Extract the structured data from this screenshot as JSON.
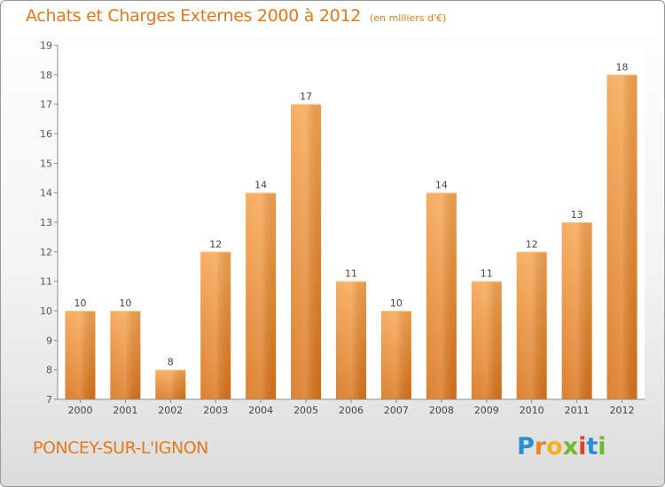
{
  "title": "Achats et Charges Externes 2000 à 2012",
  "subtitle": "(en milliers d'€)",
  "town": "PONCEY-SUR-L'IGNON",
  "logo": {
    "letters": [
      "P",
      "r",
      "o",
      "x",
      "i",
      "t",
      "i"
    ],
    "colors": [
      "#2a8fd6",
      "#e8862a",
      "#f2b21d",
      "#6fba2c",
      "#e0432c",
      "#2a8fd6",
      "#6fba2c"
    ]
  },
  "colors": {
    "accent": "#e07a1f",
    "bar_top": "#f6a550",
    "bar_bottom": "#d9731a"
  },
  "chart_data": {
    "type": "bar",
    "categories": [
      "2000",
      "2001",
      "2002",
      "2003",
      "2004",
      "2005",
      "2006",
      "2007",
      "2008",
      "2009",
      "2010",
      "2011",
      "2012"
    ],
    "values": [
      10,
      10,
      8,
      12,
      14,
      17,
      11,
      10,
      14,
      11,
      12,
      13,
      18
    ],
    "data_labels": [
      "10",
      "10",
      "8",
      "12",
      "14",
      "17",
      "11",
      "10",
      "14",
      "11",
      "12",
      "13",
      "18"
    ],
    "title": "Achats et Charges Externes 2000 à 2012",
    "xlabel": "",
    "ylabel": "",
    "ylim": [
      7,
      19
    ],
    "yticks": [
      "7",
      "8",
      "9",
      "10",
      "11",
      "12",
      "13",
      "14",
      "15",
      "16",
      "17",
      "18",
      "19"
    ],
    "grid": false,
    "legend": "none"
  }
}
